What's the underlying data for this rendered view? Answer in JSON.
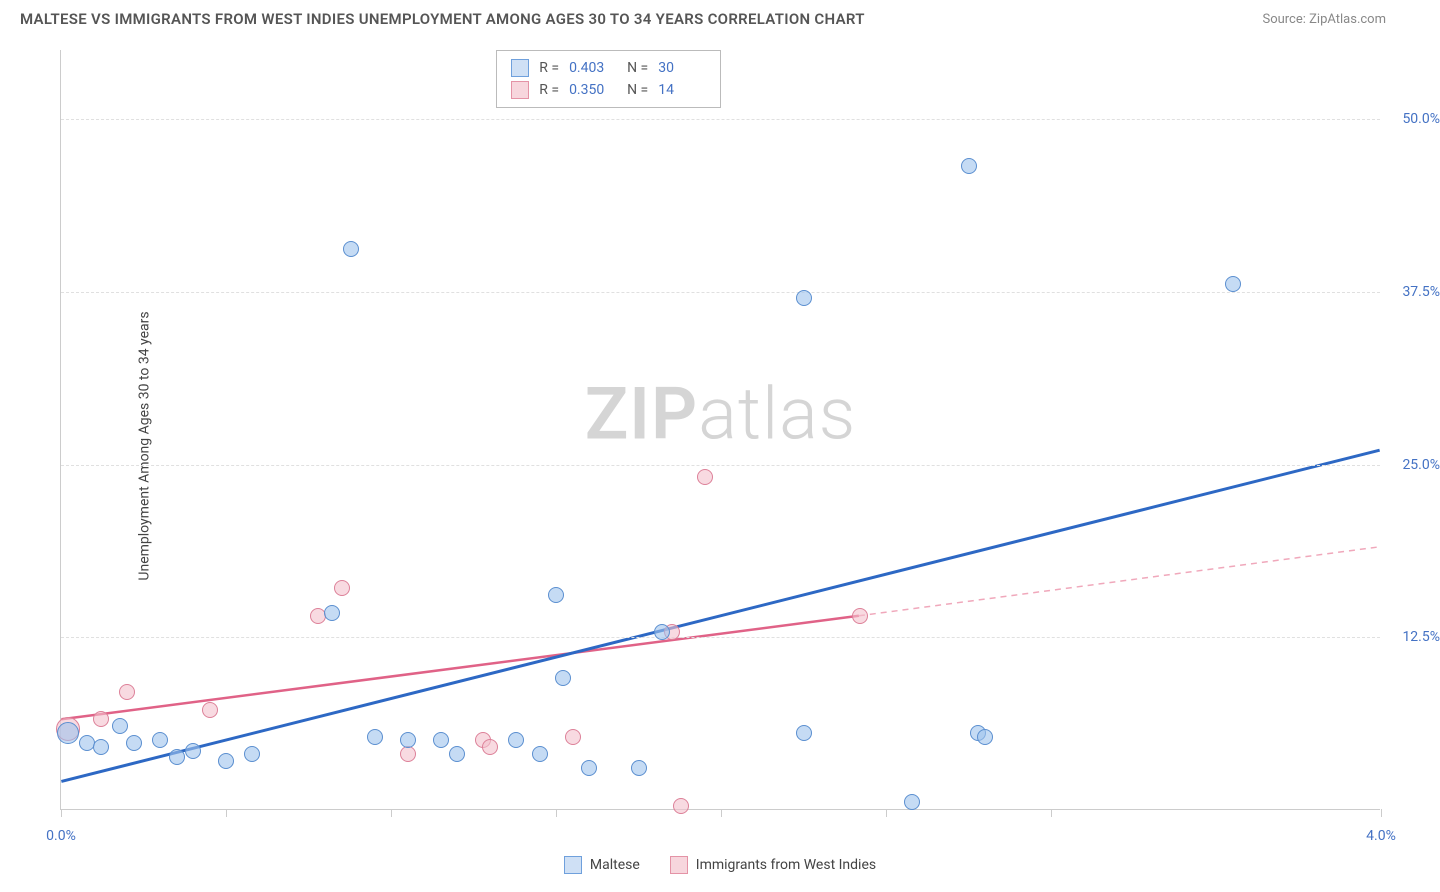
{
  "header": {
    "title": "MALTESE VS IMMIGRANTS FROM WEST INDIES UNEMPLOYMENT AMONG AGES 30 TO 34 YEARS CORRELATION CHART",
    "source": "Source: ZipAtlas.com"
  },
  "watermark": {
    "part1": "ZIP",
    "part2": "atlas"
  },
  "ylabel": "Unemployment Among Ages 30 to 34 years",
  "axes": {
    "xlim": [
      0,
      4.0
    ],
    "ylim": [
      0,
      55
    ],
    "xticks": [
      0.0,
      0.5,
      1.0,
      1.5,
      2.0,
      2.5,
      3.0,
      4.0
    ],
    "xtick_labels_shown": {
      "0.0": "0.0%",
      "4.0": "4.0%"
    },
    "yticks": [
      12.5,
      25.0,
      37.5,
      50.0
    ],
    "ytick_labels": [
      "12.5%",
      "25.0%",
      "37.5%",
      "50.0%"
    ],
    "grid_color": "#e0e0e0",
    "axis_label_color": "#4472c4"
  },
  "legend_top": [
    {
      "color_fill": "#cfe0f5",
      "color_border": "#6fa0dc",
      "r_label": "R =",
      "r_val": "0.403",
      "n_label": "N =",
      "n_val": "30"
    },
    {
      "color_fill": "#f7d6dd",
      "color_border": "#e493a6",
      "r_label": "R =",
      "r_val": "0.350",
      "n_label": "N =",
      "n_val": "14"
    }
  ],
  "legend_bottom": [
    {
      "color_fill": "#cfe0f5",
      "color_border": "#6fa0dc",
      "label": "Maltese"
    },
    {
      "color_fill": "#f7d6dd",
      "color_border": "#e493a6",
      "label": "Immigrants from West Indies"
    }
  ],
  "series": {
    "maltese": {
      "color_fill": "rgba(159,195,236,0.6)",
      "color_border": "#5b8fd0",
      "marker_size": 16,
      "points": [
        {
          "x": 0.02,
          "y": 5.5,
          "r": 22
        },
        {
          "x": 0.08,
          "y": 4.8
        },
        {
          "x": 0.12,
          "y": 4.5
        },
        {
          "x": 0.18,
          "y": 6.0
        },
        {
          "x": 0.22,
          "y": 4.8
        },
        {
          "x": 0.3,
          "y": 5.0
        },
        {
          "x": 0.35,
          "y": 3.8
        },
        {
          "x": 0.4,
          "y": 4.2
        },
        {
          "x": 0.5,
          "y": 3.5
        },
        {
          "x": 0.58,
          "y": 4.0
        },
        {
          "x": 0.82,
          "y": 14.2
        },
        {
          "x": 0.88,
          "y": 40.5
        },
        {
          "x": 0.95,
          "y": 5.2
        },
        {
          "x": 1.05,
          "y": 5.0
        },
        {
          "x": 1.15,
          "y": 5.0
        },
        {
          "x": 1.2,
          "y": 4.0
        },
        {
          "x": 1.38,
          "y": 5.0
        },
        {
          "x": 1.45,
          "y": 4.0
        },
        {
          "x": 1.5,
          "y": 15.5
        },
        {
          "x": 1.52,
          "y": 9.5
        },
        {
          "x": 1.6,
          "y": 3.0
        },
        {
          "x": 1.75,
          "y": 3.0
        },
        {
          "x": 1.82,
          "y": 12.8
        },
        {
          "x": 2.25,
          "y": 37.0
        },
        {
          "x": 2.25,
          "y": 5.5
        },
        {
          "x": 2.58,
          "y": 0.5
        },
        {
          "x": 2.75,
          "y": 46.5
        },
        {
          "x": 2.78,
          "y": 5.5
        },
        {
          "x": 2.8,
          "y": 5.2
        },
        {
          "x": 3.55,
          "y": 38.0
        }
      ],
      "regression": {
        "x1": 0.0,
        "y1": 2.0,
        "x2": 4.0,
        "y2": 26.0,
        "color": "#2d68c4",
        "width": 3
      }
    },
    "west_indies": {
      "color_fill": "rgba(244,194,205,0.6)",
      "color_border": "#dd8199",
      "marker_size": 16,
      "points": [
        {
          "x": 0.02,
          "y": 5.8,
          "r": 24
        },
        {
          "x": 0.12,
          "y": 6.5
        },
        {
          "x": 0.2,
          "y": 8.5
        },
        {
          "x": 0.45,
          "y": 7.2
        },
        {
          "x": 0.78,
          "y": 14.0
        },
        {
          "x": 0.85,
          "y": 16.0
        },
        {
          "x": 1.05,
          "y": 4.0
        },
        {
          "x": 1.28,
          "y": 5.0
        },
        {
          "x": 1.3,
          "y": 4.5
        },
        {
          "x": 1.55,
          "y": 5.2
        },
        {
          "x": 1.85,
          "y": 12.8
        },
        {
          "x": 1.88,
          "y": 0.2
        },
        {
          "x": 1.95,
          "y": 24.0
        },
        {
          "x": 2.42,
          "y": 14.0
        }
      ],
      "regression_solid": {
        "x1": 0.0,
        "y1": 6.5,
        "x2": 2.42,
        "y2": 14.0,
        "color": "#e06287",
        "width": 2.5
      },
      "regression_dashed": {
        "x1": 2.42,
        "y1": 14.0,
        "x2": 4.0,
        "y2": 19.0,
        "color": "#f0a8bb",
        "width": 1.5
      }
    }
  }
}
